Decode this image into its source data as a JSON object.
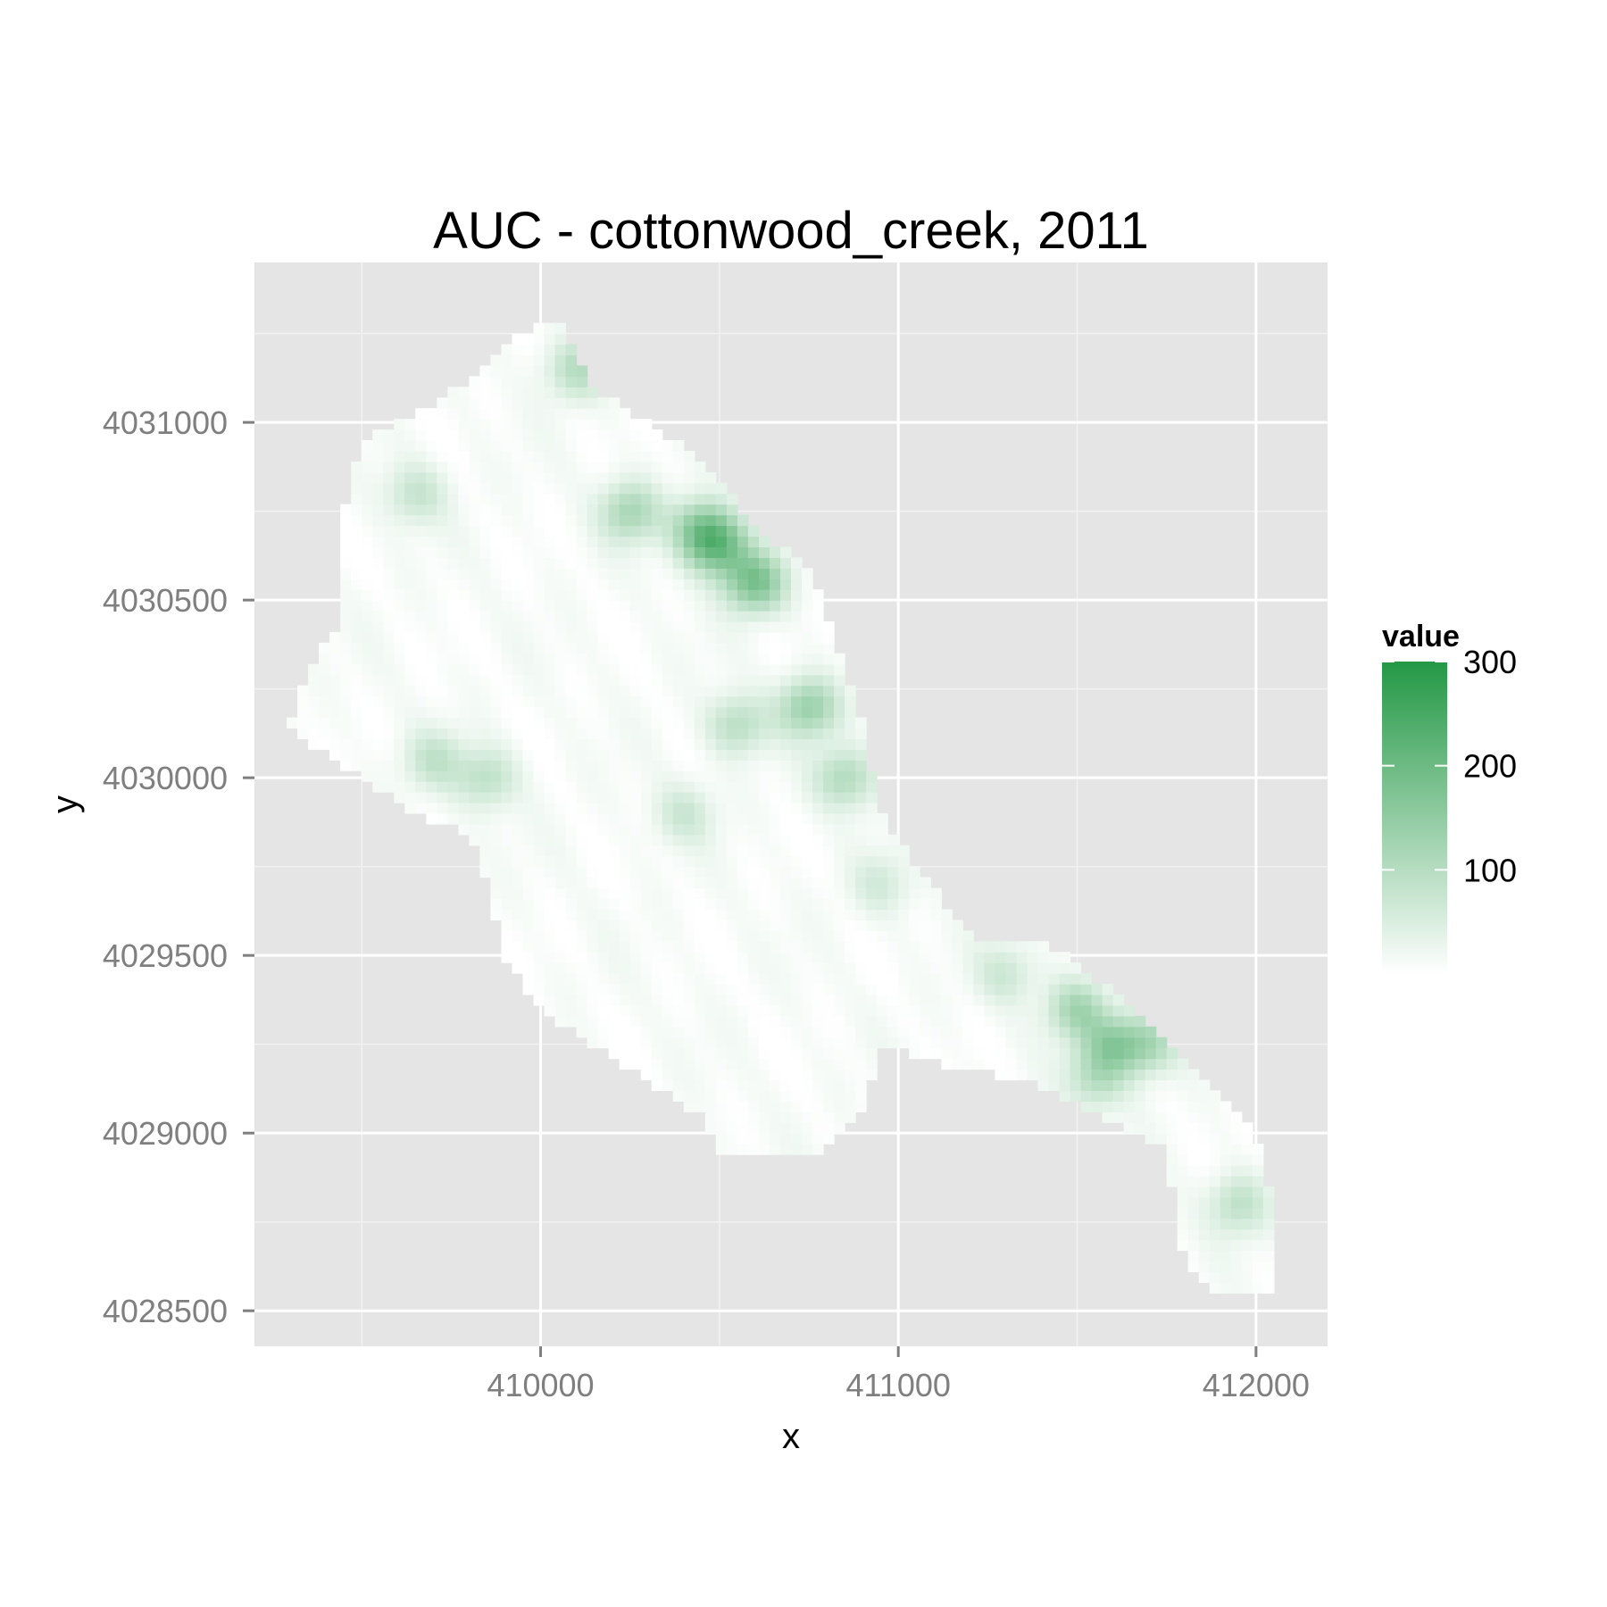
{
  "chart_data": {
    "type": "heatmap",
    "title": "AUC - cottonwood_creek, 2011",
    "xlabel": "x",
    "ylabel": "y",
    "xlim": [
      409200,
      412200
    ],
    "ylim": [
      4028400,
      4031450
    ],
    "x_ticks": [
      410000,
      411000,
      412000
    ],
    "x_tick_labels": [
      "410000",
      "411000",
      "412000"
    ],
    "y_ticks": [
      4028500,
      4029000,
      4029500,
      4030000,
      4030500,
      4031000
    ],
    "y_tick_labels": [
      "4028500",
      "4029000",
      "4029500",
      "4030000",
      "4030500",
      "4031000"
    ],
    "grid": true,
    "panel_background": "#e5e5e5",
    "legend": {
      "title": "value",
      "placement": "right",
      "ticks": [
        100,
        200,
        300
      ],
      "tick_labels": [
        "100",
        "200",
        "300"
      ],
      "range": [
        0,
        300
      ],
      "low_color": "#ffffff",
      "high_color": "#239845"
    },
    "cell_size": 30,
    "region_outline": [
      [
        409350,
        4030100
      ],
      [
        409500,
        4030000
      ],
      [
        409650,
        4029900
      ],
      [
        409800,
        4029850
      ],
      [
        409850,
        4029700
      ],
      [
        409900,
        4029500
      ],
      [
        410000,
        4029350
      ],
      [
        410150,
        4029250
      ],
      [
        410300,
        4029150
      ],
      [
        410450,
        4029050
      ],
      [
        410500,
        4028950
      ],
      [
        410800,
        4028950
      ],
      [
        410900,
        4029050
      ],
      [
        410950,
        4029250
      ],
      [
        411100,
        4029200
      ],
      [
        411350,
        4029150
      ],
      [
        411550,
        4029050
      ],
      [
        411750,
        4028950
      ],
      [
        411800,
        4028650
      ],
      [
        411900,
        4028550
      ],
      [
        412050,
        4028550
      ],
      [
        412050,
        4028800
      ],
      [
        412000,
        4029000
      ],
      [
        411800,
        4029200
      ],
      [
        411600,
        4029400
      ],
      [
        411400,
        4029550
      ],
      [
        411200,
        4029550
      ],
      [
        411050,
        4029750
      ],
      [
        410950,
        4029900
      ],
      [
        410900,
        4030150
      ],
      [
        410800,
        4030450
      ],
      [
        410750,
        4030600
      ],
      [
        410600,
        4030700
      ],
      [
        410450,
        4030900
      ],
      [
        410300,
        4031000
      ],
      [
        410150,
        4031100
      ],
      [
        410050,
        4031300
      ],
      [
        409950,
        4031250
      ],
      [
        409850,
        4031150
      ],
      [
        409700,
        4031050
      ],
      [
        409500,
        4030950
      ],
      [
        409450,
        4030750
      ],
      [
        409450,
        4030450
      ],
      [
        409350,
        4030300
      ],
      [
        409300,
        4030150
      ]
    ],
    "hotspots": [
      {
        "x": 410500,
        "y": 4030650,
        "value": 150
      },
      {
        "x": 410600,
        "y": 4030550,
        "value": 170
      },
      {
        "x": 410450,
        "y": 4030700,
        "value": 140
      },
      {
        "x": 410250,
        "y": 4030750,
        "value": 110
      },
      {
        "x": 410100,
        "y": 4031150,
        "value": 90
      },
      {
        "x": 410750,
        "y": 4030200,
        "value": 130
      },
      {
        "x": 410850,
        "y": 4030000,
        "value": 100
      },
      {
        "x": 410550,
        "y": 4030150,
        "value": 90
      },
      {
        "x": 409650,
        "y": 4030800,
        "value": 70
      },
      {
        "x": 409850,
        "y": 4030000,
        "value": 80
      },
      {
        "x": 409700,
        "y": 4030050,
        "value": 70
      },
      {
        "x": 410400,
        "y": 4029900,
        "value": 60
      },
      {
        "x": 411500,
        "y": 4029350,
        "value": 110
      },
      {
        "x": 411600,
        "y": 4029250,
        "value": 120
      },
      {
        "x": 411700,
        "y": 4029250,
        "value": 100
      },
      {
        "x": 411550,
        "y": 4029150,
        "value": 80
      },
      {
        "x": 411950,
        "y": 4028800,
        "value": 80
      },
      {
        "x": 411300,
        "y": 4029450,
        "value": 60
      },
      {
        "x": 410950,
        "y": 4029700,
        "value": 50
      }
    ],
    "base_value": 8
  }
}
